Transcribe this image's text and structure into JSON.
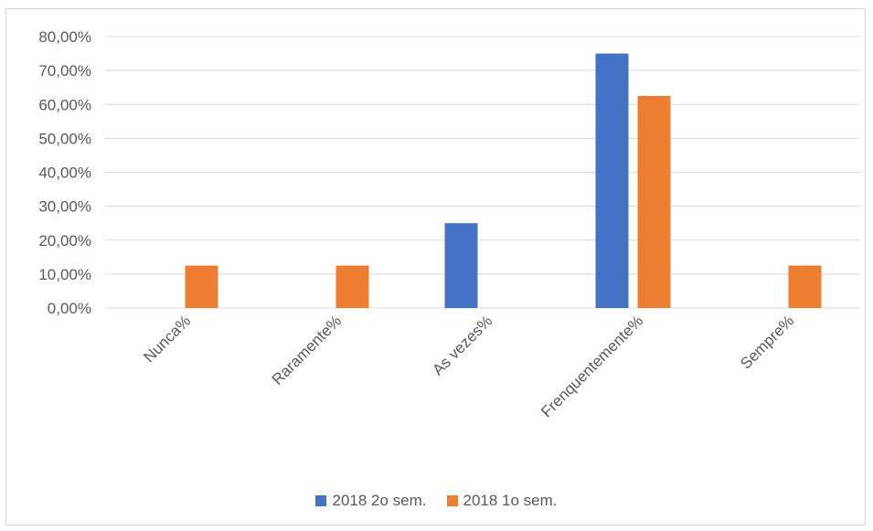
{
  "chart_data": {
    "type": "bar",
    "title": "",
    "xlabel": "",
    "ylabel": "",
    "categories": [
      "Nunca%",
      "Raramente%",
      "As vezes%",
      "Frenquentemente%",
      "Sempre%"
    ],
    "series": [
      {
        "name": "2018 2o sem.",
        "color": "#4472c4",
        "values": [
          0,
          0,
          25,
          75,
          0
        ]
      },
      {
        "name": "2018 1o sem.",
        "color": "#ed7d31",
        "values": [
          12.5,
          12.5,
          0,
          62.5,
          12.5
        ]
      }
    ],
    "ylim": [
      0,
      80
    ],
    "yticks": [
      0,
      10,
      20,
      30,
      40,
      50,
      60,
      70,
      80
    ],
    "ytick_labels": [
      "0,00%",
      "10,00%",
      "20,00%",
      "30,00%",
      "40,00%",
      "50,00%",
      "60,00%",
      "70,00%",
      "80,00%"
    ],
    "grid": true,
    "legend_position": "bottom",
    "gridline_color": "#d9d9d9",
    "text_color": "#595959"
  }
}
